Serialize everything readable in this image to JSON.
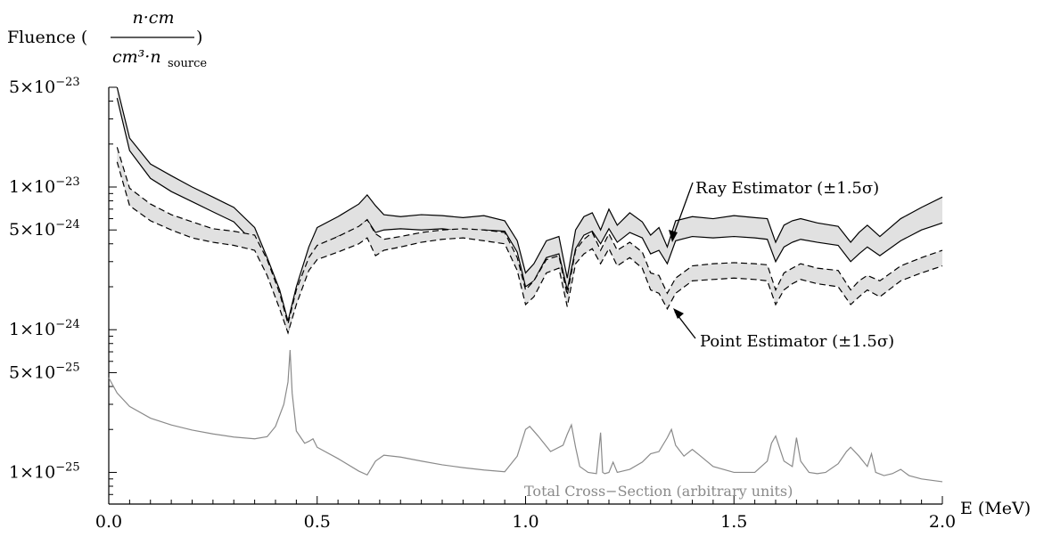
{
  "chart_data": {
    "type": "line",
    "yscale": "log",
    "xlim": [
      0,
      2.0
    ],
    "ylim": [
      6e-26,
      5e-23
    ],
    "xlabel": "E (MeV)",
    "ylabel": {
      "prefix": "Fluence (",
      "numerator": "n·cm",
      "denominator": "cm³·n",
      "denominator_sub": "source",
      "suffix": ")"
    },
    "xticks": [
      {
        "value": 0.0,
        "label": "0.0"
      },
      {
        "value": 0.5,
        "label": "0.5"
      },
      {
        "value": 1.0,
        "label": "1.0"
      },
      {
        "value": 1.5,
        "label": "1.5"
      },
      {
        "value": 2.0,
        "label": "2.0"
      }
    ],
    "yticks": [
      {
        "value": 5e-23,
        "mantissa": "5",
        "exponent": "-23"
      },
      {
        "value": 1e-23,
        "mantissa": "1",
        "exponent": "-23"
      },
      {
        "value": 5e-24,
        "mantissa": "5",
        "exponent": "-24"
      },
      {
        "value": 1e-24,
        "mantissa": "1",
        "exponent": "-24"
      },
      {
        "value": 5e-25,
        "mantissa": "5",
        "exponent": "-25"
      },
      {
        "value": 1e-25,
        "mantissa": "1",
        "exponent": "-25"
      }
    ],
    "times_symbol": "×10",
    "series": [
      {
        "name": "Ray Estimator (±1.5σ)",
        "style": "solid-band",
        "x": [
          0.02,
          0.05,
          0.1,
          0.15,
          0.2,
          0.25,
          0.3,
          0.35,
          0.38,
          0.41,
          0.43,
          0.45,
          0.48,
          0.5,
          0.55,
          0.6,
          0.62,
          0.64,
          0.66,
          0.7,
          0.75,
          0.8,
          0.85,
          0.9,
          0.95,
          0.98,
          1.0,
          1.02,
          1.05,
          1.08,
          1.1,
          1.12,
          1.14,
          1.16,
          1.18,
          1.2,
          1.22,
          1.25,
          1.28,
          1.3,
          1.32,
          1.34,
          1.36,
          1.4,
          1.45,
          1.5,
          1.55,
          1.58,
          1.6,
          1.62,
          1.64,
          1.66,
          1.7,
          1.75,
          1.78,
          1.8,
          1.82,
          1.85,
          1.9,
          1.95,
          2.0
        ],
        "upper": [
          5e-23,
          2.2e-23,
          1.45e-23,
          1.2e-23,
          1e-23,
          8.5e-24,
          7.2e-24,
          5.2e-24,
          3.2e-24,
          1.9e-24,
          1.15e-24,
          2e-24,
          3.8e-24,
          5.2e-24,
          6.2e-24,
          7.6e-24,
          8.8e-24,
          7.4e-24,
          6.4e-24,
          6.2e-24,
          6.4e-24,
          6.3e-24,
          6.1e-24,
          6.3e-24,
          5.8e-24,
          4.2e-24,
          2.5e-24,
          2.9e-24,
          4.2e-24,
          4.5e-24,
          2.3e-24,
          5e-24,
          6.2e-24,
          6.6e-24,
          5e-24,
          7e-24,
          5.4e-24,
          6.6e-24,
          5.7e-24,
          4.6e-24,
          5.2e-24,
          3.8e-24,
          5.8e-24,
          6.2e-24,
          6e-24,
          6.3e-24,
          6.1e-24,
          6e-24,
          4.1e-24,
          5.4e-24,
          5.8e-24,
          6e-24,
          5.6e-24,
          5.3e-24,
          4.1e-24,
          4.8e-24,
          5.4e-24,
          4.5e-24,
          6e-24,
          7.2e-24,
          8.5e-24
        ],
        "lower": [
          4.2e-23,
          1.8e-23,
          1.15e-23,
          9.3e-24,
          7.9e-24,
          6.7e-24,
          5.7e-24,
          4e-24,
          2.5e-24,
          1.5e-24,
          9.6e-25,
          1.6e-24,
          3e-24,
          3.8e-24,
          4.5e-24,
          5.2e-24,
          5.9e-24,
          4.8e-24,
          5e-24,
          5.1e-24,
          5e-24,
          5.1e-24,
          4.9e-24,
          5e-24,
          4.9e-24,
          3.5e-24,
          2e-24,
          2.2e-24,
          3.2e-24,
          3.4e-24,
          1.9e-24,
          3.7e-24,
          4.6e-24,
          4.9e-24,
          4e-24,
          5.1e-24,
          4.1e-24,
          4.8e-24,
          4.4e-24,
          3.4e-24,
          3.6e-24,
          2.9e-24,
          4.2e-24,
          4.5e-24,
          4.4e-24,
          4.5e-24,
          4.4e-24,
          4.3e-24,
          3e-24,
          3.8e-24,
          4.1e-24,
          4.3e-24,
          4.1e-24,
          3.9e-24,
          3e-24,
          3.4e-24,
          3.8e-24,
          3.3e-24,
          4.2e-24,
          5e-24,
          5.6e-24
        ]
      },
      {
        "name": "Point Estimator (±1.5σ)",
        "style": "dashed-band",
        "x": [
          0.02,
          0.05,
          0.1,
          0.15,
          0.2,
          0.25,
          0.3,
          0.35,
          0.38,
          0.41,
          0.43,
          0.45,
          0.48,
          0.5,
          0.55,
          0.6,
          0.62,
          0.64,
          0.66,
          0.7,
          0.75,
          0.8,
          0.85,
          0.9,
          0.95,
          0.98,
          1.0,
          1.02,
          1.05,
          1.08,
          1.1,
          1.12,
          1.14,
          1.16,
          1.18,
          1.2,
          1.22,
          1.25,
          1.28,
          1.3,
          1.32,
          1.34,
          1.36,
          1.4,
          1.45,
          1.5,
          1.55,
          1.58,
          1.6,
          1.62,
          1.64,
          1.66,
          1.7,
          1.75,
          1.78,
          1.8,
          1.82,
          1.85,
          1.9,
          1.95,
          2.0
        ],
        "upper": [
          1.9e-23,
          9.8e-24,
          7.6e-24,
          6.4e-24,
          5.7e-24,
          5.1e-24,
          4.9e-24,
          4.6e-24,
          3.1e-24,
          1.8e-24,
          1.1e-24,
          1.9e-24,
          3.2e-24,
          3.9e-24,
          4.5e-24,
          5.3e-24,
          5.9e-24,
          4.7e-24,
          4.3e-24,
          4.5e-24,
          4.8e-24,
          5e-24,
          5.1e-24,
          5e-24,
          4.8e-24,
          3.2e-24,
          1.9e-24,
          2.2e-24,
          3.1e-24,
          3.3e-24,
          1.75e-24,
          3.6e-24,
          4.3e-24,
          4.8e-24,
          3.6e-24,
          4.7e-24,
          3.6e-24,
          4.1e-24,
          3.5e-24,
          2.5e-24,
          2.4e-24,
          1.8e-24,
          2.3e-24,
          2.8e-24,
          2.9e-24,
          2.95e-24,
          2.9e-24,
          2.85e-24,
          1.9e-24,
          2.5e-24,
          2.7e-24,
          2.9e-24,
          2.7e-24,
          2.6e-24,
          1.9e-24,
          2.2e-24,
          2.4e-24,
          2.2e-24,
          2.8e-24,
          3.2e-24,
          3.6e-24
        ],
        "lower": [
          1.5e-23,
          7.4e-24,
          5.8e-24,
          5e-24,
          4.4e-24,
          4.1e-24,
          3.9e-24,
          3.6e-24,
          2.4e-24,
          1.4e-24,
          9.5e-25,
          1.5e-24,
          2.6e-24,
          3.1e-24,
          3.5e-24,
          4e-24,
          4.4e-24,
          3.3e-24,
          3.6e-24,
          3.8e-24,
          4.1e-24,
          4.3e-24,
          4.4e-24,
          4.2e-24,
          4e-24,
          2.6e-24,
          1.5e-24,
          1.7e-24,
          2.5e-24,
          2.7e-24,
          1.45e-24,
          2.9e-24,
          3.4e-24,
          3.7e-24,
          2.9e-24,
          3.7e-24,
          2.8e-24,
          3.2e-24,
          2.7e-24,
          1.9e-24,
          1.8e-24,
          1.4e-24,
          1.8e-24,
          2.2e-24,
          2.25e-24,
          2.3e-24,
          2.25e-24,
          2.2e-24,
          1.5e-24,
          1.9e-24,
          2.1e-24,
          2.25e-24,
          2.1e-24,
          2e-24,
          1.5e-24,
          1.7e-24,
          1.9e-24,
          1.7e-24,
          2.2e-24,
          2.5e-24,
          2.8e-24
        ]
      },
      {
        "name": "Total Cross-Section (arbitrary units)",
        "style": "gray-line",
        "x": [
          0.0,
          0.02,
          0.05,
          0.1,
          0.15,
          0.2,
          0.25,
          0.3,
          0.35,
          0.38,
          0.4,
          0.42,
          0.43,
          0.435,
          0.44,
          0.45,
          0.47,
          0.48,
          0.49,
          0.5,
          0.55,
          0.6,
          0.62,
          0.64,
          0.66,
          0.7,
          0.75,
          0.8,
          0.85,
          0.9,
          0.95,
          0.98,
          1.0,
          1.01,
          1.03,
          1.06,
          1.09,
          1.1,
          1.11,
          1.12,
          1.13,
          1.15,
          1.17,
          1.18,
          1.185,
          1.19,
          1.2,
          1.21,
          1.22,
          1.25,
          1.28,
          1.3,
          1.32,
          1.34,
          1.35,
          1.36,
          1.38,
          1.4,
          1.42,
          1.45,
          1.5,
          1.55,
          1.58,
          1.59,
          1.6,
          1.62,
          1.64,
          1.65,
          1.66,
          1.68,
          1.7,
          1.72,
          1.75,
          1.77,
          1.78,
          1.8,
          1.82,
          1.83,
          1.84,
          1.86,
          1.88,
          1.9,
          1.92,
          1.95,
          2.0
        ],
        "y": [
          4.6e-25,
          3.6e-25,
          2.9e-25,
          2.4e-25,
          2.15e-25,
          1.98e-25,
          1.86e-25,
          1.77e-25,
          1.72e-25,
          1.78e-25,
          2.1e-25,
          3e-25,
          4.3e-25,
          7.2e-25,
          3.6e-25,
          1.95e-25,
          1.6e-25,
          1.65e-25,
          1.72e-25,
          1.5e-25,
          1.25e-25,
          1.02e-25,
          9.6e-26,
          1.2e-25,
          1.32e-25,
          1.28e-25,
          1.2e-25,
          1.13e-25,
          1.08e-25,
          1.04e-25,
          1.01e-25,
          1.3e-25,
          2e-25,
          2.1e-25,
          1.8e-25,
          1.4e-25,
          1.55e-25,
          1.85e-25,
          2.15e-25,
          1.5e-25,
          1.1e-25,
          1e-25,
          9.8e-26,
          1.9e-25,
          1e-25,
          9.8e-26,
          1e-25,
          1.18e-25,
          1e-25,
          1.05e-25,
          1.18e-25,
          1.35e-25,
          1.4e-25,
          1.75e-25,
          2e-25,
          1.55e-25,
          1.3e-25,
          1.45e-25,
          1.3e-25,
          1.1e-25,
          1e-25,
          1e-25,
          1.2e-25,
          1.6e-25,
          1.8e-25,
          1.2e-25,
          1.1e-25,
          1.75e-25,
          1.2e-25,
          1e-25,
          9.8e-26,
          1e-25,
          1.15e-25,
          1.4e-25,
          1.5e-25,
          1.3e-25,
          1.1e-25,
          1.35e-25,
          1e-25,
          9.5e-26,
          9.8e-26,
          1.05e-25,
          9.5e-26,
          9e-26,
          8.6e-26
        ]
      }
    ],
    "annotations": [
      {
        "text": "Ray Estimator (±1.5σ)",
        "points_to": {
          "x": 1.35,
          "y": 3.7e-24
        }
      },
      {
        "text": "Point Estimator (±1.5σ)",
        "points_to": {
          "x": 1.35,
          "y": 1.45e-24
        }
      },
      {
        "text": "Total Cross−Section (arbitrary units)"
      }
    ],
    "colors": {
      "band_fill": "#e1e1e1",
      "line": "#000000",
      "cross_section": "#8a8a8a"
    }
  }
}
